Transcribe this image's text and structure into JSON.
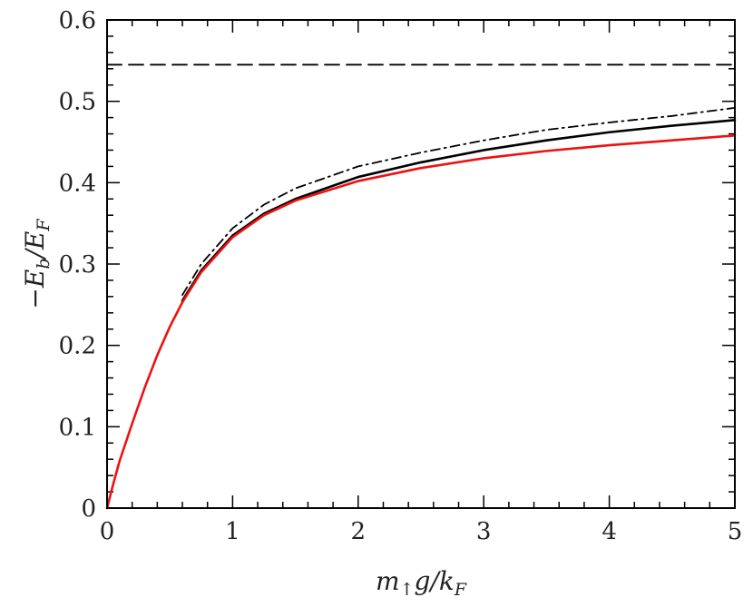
{
  "chart_data": {
    "type": "line",
    "xlabel": "m↑g/kF",
    "ylabel": "−Eb/EF",
    "xlim": [
      0,
      5
    ],
    "ylim": [
      0,
      0.6
    ],
    "x_ticks": [
      "0",
      "1",
      "2",
      "3",
      "4",
      "5"
    ],
    "y_ticks": [
      "0",
      "0.1",
      "0.2",
      "0.3",
      "0.4",
      "0.5",
      "0.6"
    ],
    "x_tick_values": [
      0,
      1,
      2,
      3,
      4,
      5
    ],
    "y_tick_values": [
      0,
      0.1,
      0.2,
      0.3,
      0.4,
      0.5,
      0.6
    ],
    "grid": false,
    "legend": "none",
    "series": [
      {
        "style": "dashed",
        "color": "#000000",
        "x": [
          0,
          5
        ],
        "y": [
          0.545,
          0.545
        ]
      },
      {
        "style": "dashdot",
        "color": "#000000",
        "x": [
          0.6,
          0.75,
          1.0,
          1.25,
          1.5,
          2.0,
          2.5,
          3.0,
          3.5,
          4.0,
          4.5,
          5.0
        ],
        "y": [
          0.262,
          0.3,
          0.344,
          0.373,
          0.393,
          0.42,
          0.437,
          0.452,
          0.465,
          0.474,
          0.482,
          0.492
        ]
      },
      {
        "style": "solid",
        "color": "#000000",
        "x": [
          0.6,
          0.75,
          1.0,
          1.25,
          1.5,
          2.0,
          2.5,
          3.0,
          3.5,
          4.0,
          4.5,
          5.0
        ],
        "y": [
          0.255,
          0.292,
          0.335,
          0.362,
          0.38,
          0.407,
          0.425,
          0.44,
          0.452,
          0.462,
          0.47,
          0.477
        ]
      },
      {
        "style": "solid",
        "color": "#ee1111",
        "x": [
          0,
          0.05,
          0.1,
          0.2,
          0.3,
          0.4,
          0.5,
          0.6,
          0.75,
          1.0,
          1.25,
          1.5,
          2.0,
          2.5,
          3.0,
          3.5,
          4.0,
          4.5,
          5.0
        ],
        "y": [
          0,
          0.03,
          0.058,
          0.104,
          0.148,
          0.188,
          0.223,
          0.253,
          0.29,
          0.333,
          0.36,
          0.378,
          0.402,
          0.418,
          0.43,
          0.439,
          0.446,
          0.452,
          0.458
        ]
      }
    ]
  }
}
